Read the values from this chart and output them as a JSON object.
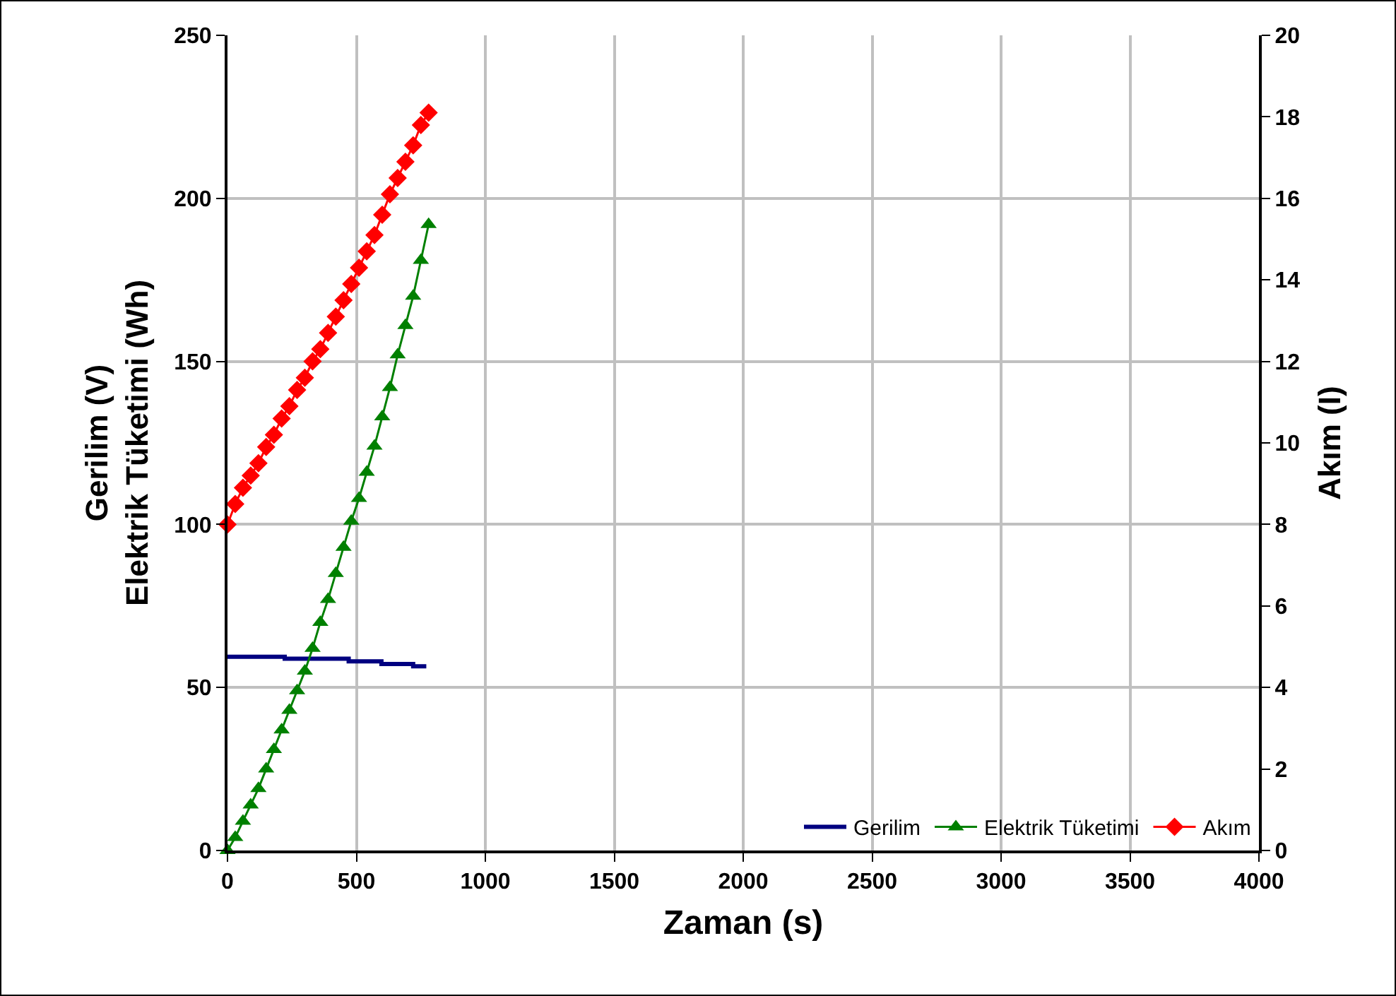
{
  "chart_data": {
    "type": "line",
    "xlabel": "Zaman (s)",
    "ylabel": "Gerilim (V)\nElektrik Tüketimi (Wh)",
    "y2label": "Akım (I)",
    "xlim": [
      0,
      4000
    ],
    "xticks": [
      0,
      500,
      1000,
      1500,
      2000,
      2500,
      3000,
      3500,
      4000
    ],
    "ylim": [
      0,
      250
    ],
    "yticks": [
      0,
      50,
      100,
      150,
      200,
      250
    ],
    "y2lim": [
      0,
      20
    ],
    "y2ticks": [
      0,
      2,
      4,
      6,
      8,
      10,
      12,
      14,
      16,
      18,
      20
    ],
    "grid": true,
    "legend": "bottom right",
    "line_style": "solid",
    "series": [
      {
        "name": "Gerilim",
        "color": "#000080",
        "marker": "none",
        "x": [
          0,
          222,
          222,
          470,
          470,
          597,
          597,
          720,
          720,
          771
        ],
        "values": [
          59.4,
          59.4,
          58.8,
          58.8,
          58.0,
          58.0,
          57.2,
          57.2,
          56.5,
          56.5
        ]
      },
      {
        "name": "Elektrik Tüketimi",
        "color": "#008000",
        "marker": "triangle",
        "x": [
          0,
          30,
          60,
          90,
          120,
          150,
          180,
          210,
          240,
          270,
          300,
          330,
          360,
          390,
          420,
          450,
          480,
          510,
          540,
          570,
          600,
          630,
          660,
          690,
          720,
          750,
          780
        ],
        "values": [
          0,
          4,
          9,
          14,
          19,
          25,
          31,
          37,
          43,
          49,
          55,
          62,
          70,
          77,
          85,
          93,
          101,
          108,
          116,
          124,
          133,
          142,
          152,
          161,
          170,
          181,
          192
        ]
      },
      {
        "name": "Akım",
        "color": "#ff0000",
        "marker": "diamond",
        "axis": "y2",
        "x": [
          0,
          30,
          60,
          90,
          120,
          150,
          180,
          210,
          240,
          270,
          300,
          330,
          360,
          390,
          420,
          450,
          480,
          510,
          540,
          570,
          600,
          630,
          660,
          690,
          720,
          750,
          780
        ],
        "values": [
          8.0,
          8.5,
          8.9,
          9.2,
          9.5,
          9.9,
          10.2,
          10.6,
          10.9,
          11.3,
          11.6,
          12.0,
          12.3,
          12.7,
          13.1,
          13.5,
          13.9,
          14.3,
          14.7,
          15.1,
          15.6,
          16.1,
          16.5,
          16.9,
          17.3,
          17.8,
          18.1
        ]
      }
    ]
  }
}
